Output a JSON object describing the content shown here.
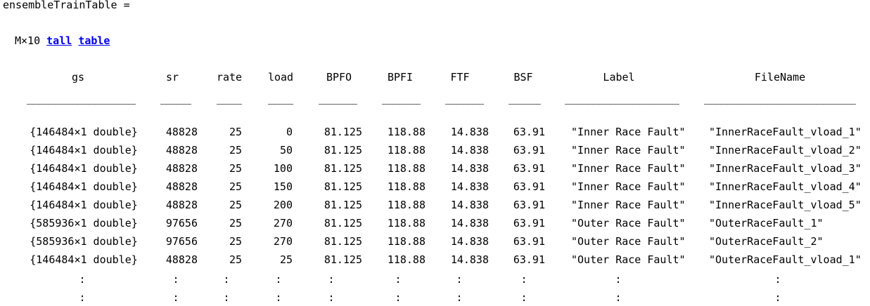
{
  "output": {
    "variable_line": "ensembleTrainTable =",
    "size_prefix": "M×10",
    "link_tall": "tall",
    "link_table": "table"
  },
  "columns": [
    {
      "key": "gs",
      "header": "gs",
      "underline": "________________"
    },
    {
      "key": "sr",
      "header": "sr",
      "underline": "_____"
    },
    {
      "key": "rate",
      "header": "rate",
      "underline": "____"
    },
    {
      "key": "load",
      "header": "load",
      "underline": "____"
    },
    {
      "key": "BPFO",
      "header": "BPFO",
      "underline": "______"
    },
    {
      "key": "BPFI",
      "header": "BPFI",
      "underline": "______"
    },
    {
      "key": "FTF",
      "header": "FTF",
      "underline": "______"
    },
    {
      "key": "BSF",
      "header": "BSF",
      "underline": "_____"
    },
    {
      "key": "Label",
      "header": "Label",
      "underline": "___________________"
    },
    {
      "key": "FileName",
      "header": "FileName",
      "underline": "________________________"
    }
  ],
  "rows": [
    [
      "{146484×1 double}",
      "48828",
      "25",
      "0",
      "81.125",
      "118.88",
      "14.838",
      "63.91",
      "\"Inner Race Fault\"",
      "\"InnerRaceFault_vload_1\""
    ],
    [
      "{146484×1 double}",
      "48828",
      "25",
      "50",
      "81.125",
      "118.88",
      "14.838",
      "63.91",
      "\"Inner Race Fault\"",
      "\"InnerRaceFault_vload_2\""
    ],
    [
      "{146484×1 double}",
      "48828",
      "25",
      "100",
      "81.125",
      "118.88",
      "14.838",
      "63.91",
      "\"Inner Race Fault\"",
      "\"InnerRaceFault_vload_3\""
    ],
    [
      "{146484×1 double}",
      "48828",
      "25",
      "150",
      "81.125",
      "118.88",
      "14.838",
      "63.91",
      "\"Inner Race Fault\"",
      "\"InnerRaceFault_vload_4\""
    ],
    [
      "{146484×1 double}",
      "48828",
      "25",
      "200",
      "81.125",
      "118.88",
      "14.838",
      "63.91",
      "\"Inner Race Fault\"",
      "\"InnerRaceFault_vload_5\""
    ],
    [
      "{585936×1 double}",
      "97656",
      "25",
      "270",
      "81.125",
      "118.88",
      "14.838",
      "63.91",
      "\"Outer Race Fault\"",
      "\"OuterRaceFault_1\""
    ],
    [
      "{585936×1 double}",
      "97656",
      "25",
      "270",
      "81.125",
      "118.88",
      "14.838",
      "63.91",
      "\"Outer Race Fault\"",
      "\"OuterRaceFault_2\""
    ],
    [
      "{146484×1 double}",
      "48828",
      "25",
      "25",
      "81.125",
      "118.88",
      "14.838",
      "63.91",
      "\"Outer Race Fault\"",
      "\"OuterRaceFault_vload_1\""
    ]
  ],
  "continuation_symbol": ":"
}
